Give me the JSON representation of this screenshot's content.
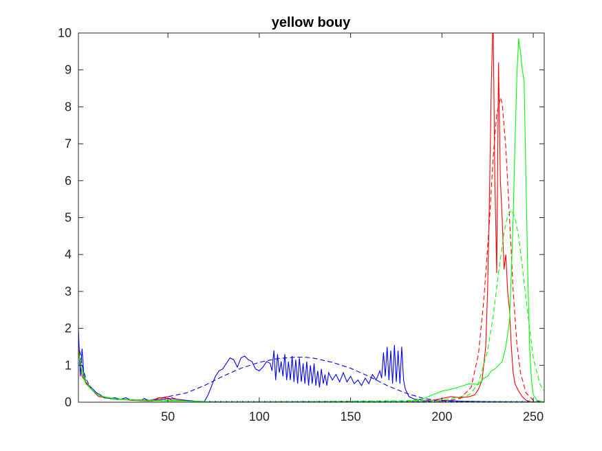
{
  "chart_data": {
    "type": "line",
    "title": "yellow bouy",
    "xlabel": "",
    "ylabel": "",
    "xlim": [
      1,
      256
    ],
    "ylim": [
      0,
      10
    ],
    "xticks": [
      50,
      100,
      150,
      200,
      250
    ],
    "yticks": [
      0,
      1,
      2,
      3,
      4,
      5,
      6,
      7,
      8,
      9,
      10
    ],
    "grid": false,
    "legend": "none",
    "series": [
      {
        "color": "#0000ff",
        "style": "solid",
        "points": [
          [
            1,
            2.0
          ],
          [
            2,
            0.7
          ],
          [
            3,
            1.45
          ],
          [
            4,
            0.7
          ],
          [
            5,
            0.5
          ],
          [
            7,
            0.45
          ],
          [
            9,
            0.35
          ],
          [
            11,
            0.25
          ],
          [
            13,
            0.2
          ],
          [
            15,
            0.12
          ],
          [
            18,
            0.1
          ],
          [
            21,
            0.12
          ],
          [
            24,
            0.08
          ],
          [
            27,
            0.12
          ],
          [
            30,
            0.05
          ],
          [
            33,
            0.06
          ],
          [
            35,
            0.04
          ],
          [
            37,
            0.1
          ],
          [
            39,
            0.05
          ],
          [
            41,
            0.03
          ],
          [
            45,
            0.05
          ],
          [
            50,
            0.1
          ],
          [
            55,
            0.08
          ],
          [
            60,
            0.05
          ],
          [
            65,
            0.03
          ],
          [
            70,
            0.02
          ],
          [
            72,
            0.2
          ],
          [
            74,
            0.45
          ],
          [
            76,
            0.7
          ],
          [
            78,
            0.85
          ],
          [
            80,
            0.9
          ],
          [
            82,
            1.05
          ],
          [
            84,
            1.2
          ],
          [
            86,
            1.15
          ],
          [
            88,
            0.95
          ],
          [
            90,
            1.2
          ],
          [
            92,
            1.25
          ],
          [
            94,
            1.15
          ],
          [
            96,
            1.1
          ],
          [
            98,
            0.9
          ],
          [
            100,
            0.85
          ],
          [
            102,
            0.95
          ],
          [
            104,
            1.1
          ],
          [
            106,
            1.05
          ],
          [
            107,
            0.85
          ],
          [
            108,
            1.4
          ],
          [
            109,
            0.6
          ],
          [
            110,
            1.3
          ],
          [
            111,
            0.8
          ],
          [
            112,
            1.1
          ],
          [
            113,
            0.7
          ],
          [
            114,
            1.3
          ],
          [
            115,
            0.6
          ],
          [
            116,
            1.1
          ],
          [
            117,
            0.6
          ],
          [
            118,
            1.25
          ],
          [
            119,
            0.55
          ],
          [
            120,
            1.15
          ],
          [
            121,
            0.5
          ],
          [
            122,
            1.2
          ],
          [
            123,
            0.55
          ],
          [
            124,
            1.05
          ],
          [
            125,
            0.5
          ],
          [
            126,
            1.1
          ],
          [
            127,
            0.45
          ],
          [
            128,
            1.0
          ],
          [
            129,
            0.5
          ],
          [
            130,
            1.05
          ],
          [
            131,
            0.45
          ],
          [
            132,
            0.85
          ],
          [
            133,
            0.4
          ],
          [
            134,
            0.9
          ],
          [
            135,
            0.5
          ],
          [
            136,
            0.75
          ],
          [
            137,
            0.45
          ],
          [
            138,
            0.8
          ],
          [
            140,
            0.6
          ],
          [
            142,
            0.75
          ],
          [
            144,
            0.55
          ],
          [
            146,
            0.8
          ],
          [
            148,
            0.55
          ],
          [
            150,
            0.7
          ],
          [
            152,
            0.5
          ],
          [
            154,
            0.6
          ],
          [
            156,
            0.45
          ],
          [
            158,
            0.65
          ],
          [
            160,
            0.5
          ],
          [
            162,
            0.75
          ],
          [
            164,
            0.6
          ],
          [
            166,
            0.85
          ],
          [
            167,
            0.65
          ],
          [
            168,
            1.35
          ],
          [
            169,
            0.7
          ],
          [
            170,
            1.5
          ],
          [
            171,
            0.6
          ],
          [
            172,
            1.4
          ],
          [
            173,
            0.5
          ],
          [
            174,
            1.55
          ],
          [
            175,
            0.55
          ],
          [
            176,
            1.4
          ],
          [
            177,
            0.5
          ],
          [
            178,
            1.5
          ],
          [
            179,
            0.6
          ],
          [
            180,
            0.35
          ],
          [
            182,
            0.15
          ],
          [
            185,
            0.08
          ],
          [
            190,
            0.05
          ],
          [
            200,
            0.05
          ],
          [
            210,
            0.03
          ],
          [
            220,
            0.02
          ],
          [
            256,
            0.0
          ]
        ]
      },
      {
        "color": "#0000ff",
        "style": "dashed",
        "points": [
          [
            1,
            1.6
          ],
          [
            3,
            1.0
          ],
          [
            5,
            0.65
          ],
          [
            8,
            0.35
          ],
          [
            12,
            0.18
          ],
          [
            20,
            0.08
          ],
          [
            40,
            0.05
          ],
          [
            55,
            0.2
          ],
          [
            60,
            0.25
          ],
          [
            70,
            0.45
          ],
          [
            80,
            0.7
          ],
          [
            90,
            0.92
          ],
          [
            100,
            1.08
          ],
          [
            110,
            1.18
          ],
          [
            120,
            1.22
          ],
          [
            125,
            1.22
          ],
          [
            130,
            1.19
          ],
          [
            140,
            1.08
          ],
          [
            150,
            0.92
          ],
          [
            160,
            0.7
          ],
          [
            170,
            0.45
          ],
          [
            180,
            0.25
          ],
          [
            190,
            0.1
          ],
          [
            200,
            0.04
          ],
          [
            210,
            0.01
          ],
          [
            256,
            0.0
          ]
        ]
      },
      {
        "color": "#ff0000",
        "style": "solid",
        "points": [
          [
            1,
            1.5
          ],
          [
            3,
            0.7
          ],
          [
            5,
            0.55
          ],
          [
            8,
            0.35
          ],
          [
            12,
            0.15
          ],
          [
            20,
            0.1
          ],
          [
            30,
            0.05
          ],
          [
            40,
            0.03
          ],
          [
            45,
            0.08
          ],
          [
            48,
            0.12
          ],
          [
            50,
            0.1
          ],
          [
            52,
            0.05
          ],
          [
            60,
            0.03
          ],
          [
            80,
            0.0
          ],
          [
            180,
            0.0
          ],
          [
            190,
            0.02
          ],
          [
            195,
            0.05
          ],
          [
            200,
            0.1
          ],
          [
            205,
            0.15
          ],
          [
            210,
            0.12
          ],
          [
            215,
            0.15
          ],
          [
            218,
            0.2
          ],
          [
            220,
            0.35
          ],
          [
            222,
            0.6
          ],
          [
            224,
            1.5
          ],
          [
            225,
            3.0
          ],
          [
            226,
            5.5
          ],
          [
            227,
            8.5
          ],
          [
            228,
            10.5
          ],
          [
            229,
            6.0
          ],
          [
            230,
            3.5
          ],
          [
            231,
            9.2
          ],
          [
            232,
            6.0
          ],
          [
            233,
            5.0
          ],
          [
            234,
            3.6
          ],
          [
            235,
            4.0
          ],
          [
            236,
            3.0
          ],
          [
            237,
            2.5
          ],
          [
            238,
            1.5
          ],
          [
            239,
            0.8
          ],
          [
            240,
            0.5
          ],
          [
            242,
            0.3
          ],
          [
            244,
            0.15
          ],
          [
            246,
            0.05
          ],
          [
            250,
            0.0
          ],
          [
            256,
            0.0
          ]
        ]
      },
      {
        "color": "#ff0000",
        "style": "dashed",
        "points": [
          [
            1,
            1.3
          ],
          [
            3,
            0.9
          ],
          [
            5,
            0.6
          ],
          [
            8,
            0.35
          ],
          [
            12,
            0.18
          ],
          [
            20,
            0.08
          ],
          [
            40,
            0.05
          ],
          [
            45,
            0.12
          ],
          [
            50,
            0.15
          ],
          [
            55,
            0.08
          ],
          [
            60,
            0.03
          ],
          [
            80,
            0.0
          ],
          [
            200,
            0.02
          ],
          [
            210,
            0.1
          ],
          [
            216,
            0.4
          ],
          [
            220,
            1.3
          ],
          [
            223,
            2.8
          ],
          [
            226,
            4.9
          ],
          [
            228,
            6.6
          ],
          [
            230,
            7.8
          ],
          [
            232,
            8.25
          ],
          [
            233,
            8.1
          ],
          [
            235,
            6.9
          ],
          [
            237,
            5.0
          ],
          [
            239,
            3.0
          ],
          [
            241,
            1.6
          ],
          [
            243,
            0.8
          ],
          [
            246,
            0.25
          ],
          [
            250,
            0.05
          ],
          [
            256,
            0.0
          ]
        ]
      },
      {
        "color": "#00ff00",
        "style": "solid",
        "points": [
          [
            1,
            1.4
          ],
          [
            3,
            0.8
          ],
          [
            5,
            0.5
          ],
          [
            8,
            0.35
          ],
          [
            12,
            0.18
          ],
          [
            20,
            0.1
          ],
          [
            30,
            0.06
          ],
          [
            40,
            0.04
          ],
          [
            50,
            0.03
          ],
          [
            60,
            0.03
          ],
          [
            80,
            0.0
          ],
          [
            180,
            0.02
          ],
          [
            185,
            0.05
          ],
          [
            190,
            0.1
          ],
          [
            195,
            0.2
          ],
          [
            200,
            0.3
          ],
          [
            205,
            0.35
          ],
          [
            210,
            0.42
          ],
          [
            215,
            0.5
          ],
          [
            220,
            0.48
          ],
          [
            223,
            0.65
          ],
          [
            225,
            0.7
          ],
          [
            227,
            0.85
          ],
          [
            229,
            0.9
          ],
          [
            231,
            1.0
          ],
          [
            233,
            1.1
          ],
          [
            235,
            1.5
          ],
          [
            237,
            2.2
          ],
          [
            238,
            3.5
          ],
          [
            239,
            5.0
          ],
          [
            240,
            7.0
          ],
          [
            241,
            8.8
          ],
          [
            242,
            9.85
          ],
          [
            243,
            9.5
          ],
          [
            244,
            9.0
          ],
          [
            245,
            8.7
          ],
          [
            246,
            6.0
          ],
          [
            247,
            3.5
          ],
          [
            248,
            1.5
          ],
          [
            249,
            0.6
          ],
          [
            250,
            0.2
          ],
          [
            252,
            0.05
          ],
          [
            256,
            0.0
          ]
        ]
      },
      {
        "color": "#00ff00",
        "style": "dashed",
        "points": [
          [
            1,
            1.3
          ],
          [
            3,
            0.9
          ],
          [
            5,
            0.6
          ],
          [
            8,
            0.35
          ],
          [
            12,
            0.18
          ],
          [
            20,
            0.08
          ],
          [
            40,
            0.05
          ],
          [
            55,
            0.05
          ],
          [
            60,
            0.03
          ],
          [
            80,
            0.0
          ],
          [
            200,
            0.05
          ],
          [
            215,
            0.2
          ],
          [
            220,
            0.5
          ],
          [
            225,
            1.4
          ],
          [
            228,
            2.3
          ],
          [
            231,
            3.5
          ],
          [
            234,
            4.6
          ],
          [
            236,
            5.05
          ],
          [
            238,
            5.2
          ],
          [
            240,
            5.0
          ],
          [
            242,
            4.5
          ],
          [
            244,
            3.7
          ],
          [
            246,
            2.8
          ],
          [
            248,
            2.0
          ],
          [
            250,
            1.2
          ],
          [
            252,
            0.8
          ],
          [
            254,
            0.45
          ],
          [
            256,
            0.3
          ]
        ]
      }
    ]
  }
}
